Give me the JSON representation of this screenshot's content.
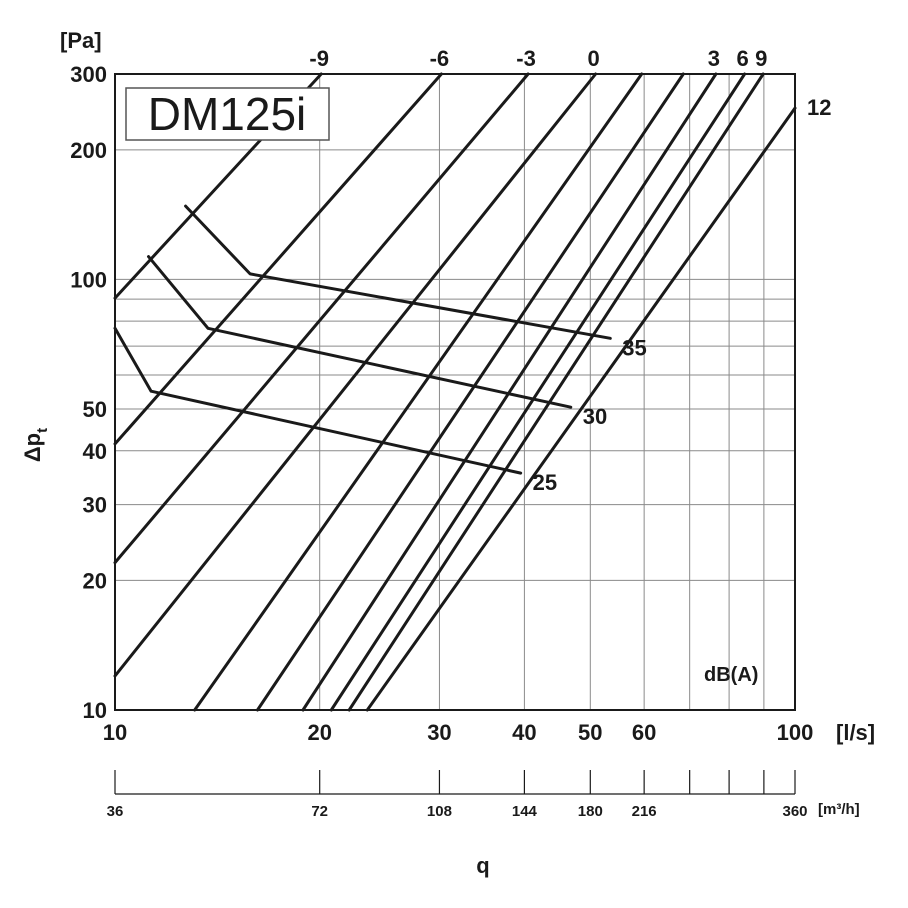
{
  "chart_data": {
    "type": "line",
    "title": "DM125i",
    "xlabel": "[l/s]",
    "ylabel_unit": "[Pa]",
    "ylabel": "Δp",
    "ylabel_sub": "t",
    "x_scale": "log",
    "y_scale": "log",
    "xlim": [
      10,
      100
    ],
    "ylim": [
      10,
      300
    ],
    "x_ticks": [
      {
        "value": 10,
        "label": "10"
      },
      {
        "value": 20,
        "label": "20"
      },
      {
        "value": 30,
        "label": "30"
      },
      {
        "value": 40,
        "label": "40"
      },
      {
        "value": 50,
        "label": "50"
      },
      {
        "value": 60,
        "label": "60"
      },
      {
        "value": 100,
        "label": "100"
      }
    ],
    "x_minor_grid": [
      70,
      80,
      90
    ],
    "y_ticks": [
      {
        "value": 10,
        "label": "10"
      },
      {
        "value": 20,
        "label": "20"
      },
      {
        "value": 30,
        "label": "30"
      },
      {
        "value": 40,
        "label": "40"
      },
      {
        "value": 50,
        "label": "50"
      },
      {
        "value": 100,
        "label": "100"
      },
      {
        "value": 200,
        "label": "200"
      },
      {
        "value": 300,
        "label": "300"
      }
    ],
    "y_minor_grid": [
      60,
      70,
      80,
      90
    ],
    "secondary_x_axis": {
      "unit_label": "[m³/h]",
      "name": "q",
      "ticks": [
        {
          "value": 10,
          "label": "36"
        },
        {
          "value": 20,
          "label": "72"
        },
        {
          "value": 30,
          "label": "108"
        },
        {
          "value": 40,
          "label": "144"
        },
        {
          "value": 50,
          "label": "180"
        },
        {
          "value": 60,
          "label": "216"
        },
        {
          "value": 70,
          "label": ""
        },
        {
          "value": 80,
          "label": ""
        },
        {
          "value": 90,
          "label": ""
        },
        {
          "value": 100,
          "label": "360"
        }
      ]
    },
    "damper_setting_lines": [
      {
        "label": "-9",
        "points": [
          [
            10,
            90.5
          ],
          [
            20.1,
            300
          ]
        ]
      },
      {
        "label": "-6",
        "points": [
          [
            10,
            41.5
          ],
          [
            30.2,
            300
          ]
        ]
      },
      {
        "label": "-3",
        "points": [
          [
            10,
            22
          ],
          [
            40.5,
            300
          ]
        ]
      },
      {
        "label": "0",
        "points": [
          [
            10,
            12
          ],
          [
            50.9,
            300
          ]
        ]
      },
      {
        "label": "",
        "points": [
          [
            13.1,
            10
          ],
          [
            59.5,
            300
          ]
        ]
      },
      {
        "label": "",
        "points": [
          [
            16.2,
            10
          ],
          [
            68.5,
            300
          ]
        ]
      },
      {
        "label": "3",
        "points": [
          [
            18.9,
            10
          ],
          [
            76.5,
            300
          ]
        ]
      },
      {
        "label": "6",
        "points": [
          [
            20.8,
            10
          ],
          [
            84.3,
            300
          ]
        ]
      },
      {
        "label": "9",
        "points": [
          [
            22.1,
            10
          ],
          [
            89.8,
            300
          ]
        ]
      },
      {
        "label": "12",
        "points": [
          [
            23.5,
            10
          ],
          [
            100,
            250
          ]
        ]
      }
    ],
    "sound_level_lines": [
      {
        "label": "35",
        "points": [
          [
            12.7,
            148
          ],
          [
            15.8,
            103
          ],
          [
            53.5,
            73
          ]
        ]
      },
      {
        "label": "30",
        "points": [
          [
            11.2,
            113
          ],
          [
            13.7,
            77
          ],
          [
            46.8,
            50.5
          ]
        ]
      },
      {
        "label": "25",
        "points": [
          [
            10,
            77
          ],
          [
            11.3,
            55
          ],
          [
            39.5,
            35.5
          ]
        ]
      }
    ],
    "sound_level_unit": "dB(A)",
    "grid": true
  }
}
